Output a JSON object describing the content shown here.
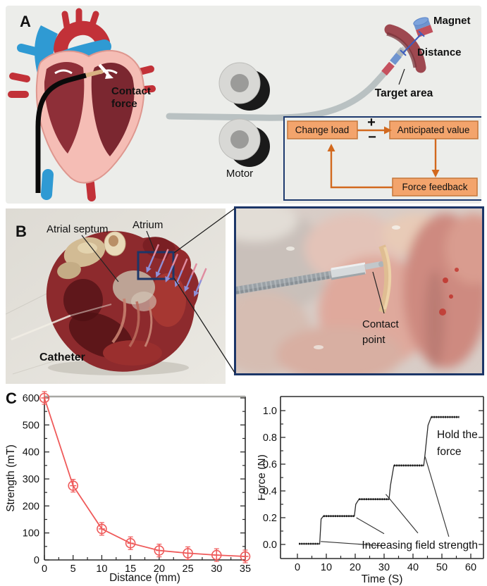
{
  "figure": {
    "background": "#ffffff"
  },
  "panelA": {
    "label": "A",
    "background": "#ECEDEA",
    "contact_force": [
      "Contact",
      "force"
    ],
    "motor_label": "Motor",
    "magnet_label": "Magnet",
    "distance_label": "Distance",
    "target_area_label": "Target area",
    "feedback": {
      "change_load": "Change load",
      "anticipated_value": "Anticipated value",
      "force_feedback": "Force feedback",
      "plus": "+",
      "minus": "−"
    },
    "colors": {
      "box_fill": "#F3A46C",
      "box_border": "#C4763B",
      "arrow_orange": "#D2691E",
      "frame_navy": "#1E3A6E",
      "distance_blue": "#2F4BA8",
      "target_red": "#E2251B"
    }
  },
  "panelB": {
    "label": "B",
    "atrial_septum_label": "Atrial septum",
    "atrium_label": "Atrium",
    "catheter_label": "Catheter",
    "contact_point": [
      "Contact",
      "point"
    ],
    "frame_color": "#1C3668"
  },
  "panelC": {
    "label": "C"
  },
  "chart_data": [
    {
      "id": "field-strength",
      "type": "line",
      "title": "",
      "xlabel": "Distance (mm)",
      "ylabel": "Strength (mT)",
      "x": [
        0,
        5,
        10,
        15,
        20,
        25,
        30,
        35
      ],
      "y": [
        600,
        275,
        115,
        62,
        35,
        25,
        18,
        13
      ],
      "xlim": [
        0,
        35
      ],
      "ylim": [
        0,
        600
      ],
      "xticks": [
        0,
        5,
        10,
        15,
        20,
        25,
        30,
        35
      ],
      "xticks_minor": [
        2.5,
        7.5,
        12.5,
        17.5,
        22.5,
        27.5,
        32.5
      ],
      "yticks": [
        0,
        100,
        200,
        300,
        400,
        500,
        600
      ],
      "yticks_minor": [
        50,
        150,
        250,
        350,
        450,
        550
      ],
      "grid": false,
      "legend": null,
      "line_color": "#EF5A5A",
      "marker": "circle-plus"
    },
    {
      "id": "force-steps",
      "type": "line",
      "title": "",
      "xlabel": "Time (S)",
      "ylabel": "Force (N)",
      "points": [
        [
          0.5,
          0.005
        ],
        [
          7.7,
          0.005
        ],
        [
          8.2,
          0.19
        ],
        [
          9.0,
          0.212
        ],
        [
          19.7,
          0.212
        ],
        [
          20.2,
          0.3
        ],
        [
          21.3,
          0.338
        ],
        [
          31.7,
          0.338
        ],
        [
          32.2,
          0.44
        ],
        [
          33.4,
          0.59
        ],
        [
          43.7,
          0.59
        ],
        [
          44.1,
          0.66
        ],
        [
          45.2,
          0.89
        ],
        [
          46.3,
          0.952
        ],
        [
          56.0,
          0.952
        ]
      ],
      "plateaus": [
        [
          0.5,
          7.7,
          0.005
        ],
        [
          9.0,
          19.7,
          0.212
        ],
        [
          21.3,
          31.7,
          0.338
        ],
        [
          33.4,
          43.7,
          0.59
        ],
        [
          46.3,
          56.0,
          0.952
        ]
      ],
      "xlim": [
        0,
        60
      ],
      "ylim": [
        0,
        1.0
      ],
      "xticks": [
        0,
        10,
        20,
        30,
        40,
        50,
        60
      ],
      "xticks_minor": [
        5,
        15,
        25,
        35,
        45,
        55
      ],
      "yticks": [
        0,
        0.2,
        0.4,
        0.6,
        0.8,
        1
      ],
      "ytick_labels": [
        "0.0",
        "0.2",
        "0.4",
        "0.6",
        "0.8",
        "1.0"
      ],
      "yticks_minor": [
        0.1,
        0.3,
        0.5,
        0.7,
        0.9
      ],
      "grid": false,
      "legend": null,
      "line_color": "#2B2B2B",
      "annotations": [
        {
          "id": "hold-the-force-label",
          "lines": [
            "Hold the",
            "force"
          ],
          "t": 48.3,
          "f": 0.795
        },
        {
          "id": "increasing-field-strength-label",
          "lines": [
            "Increasing field strength"
          ],
          "t": 22.3,
          "f": -0.032
        }
      ],
      "leader_lines": [
        [
          8.1,
          0.022,
          29.3,
          -0.01
        ],
        [
          20.4,
          0.2,
          30.0,
          0.08
        ],
        [
          30.6,
          0.375,
          41.7,
          0.085
        ],
        [
          44.2,
          0.655,
          52.4,
          0.058
        ]
      ]
    }
  ]
}
